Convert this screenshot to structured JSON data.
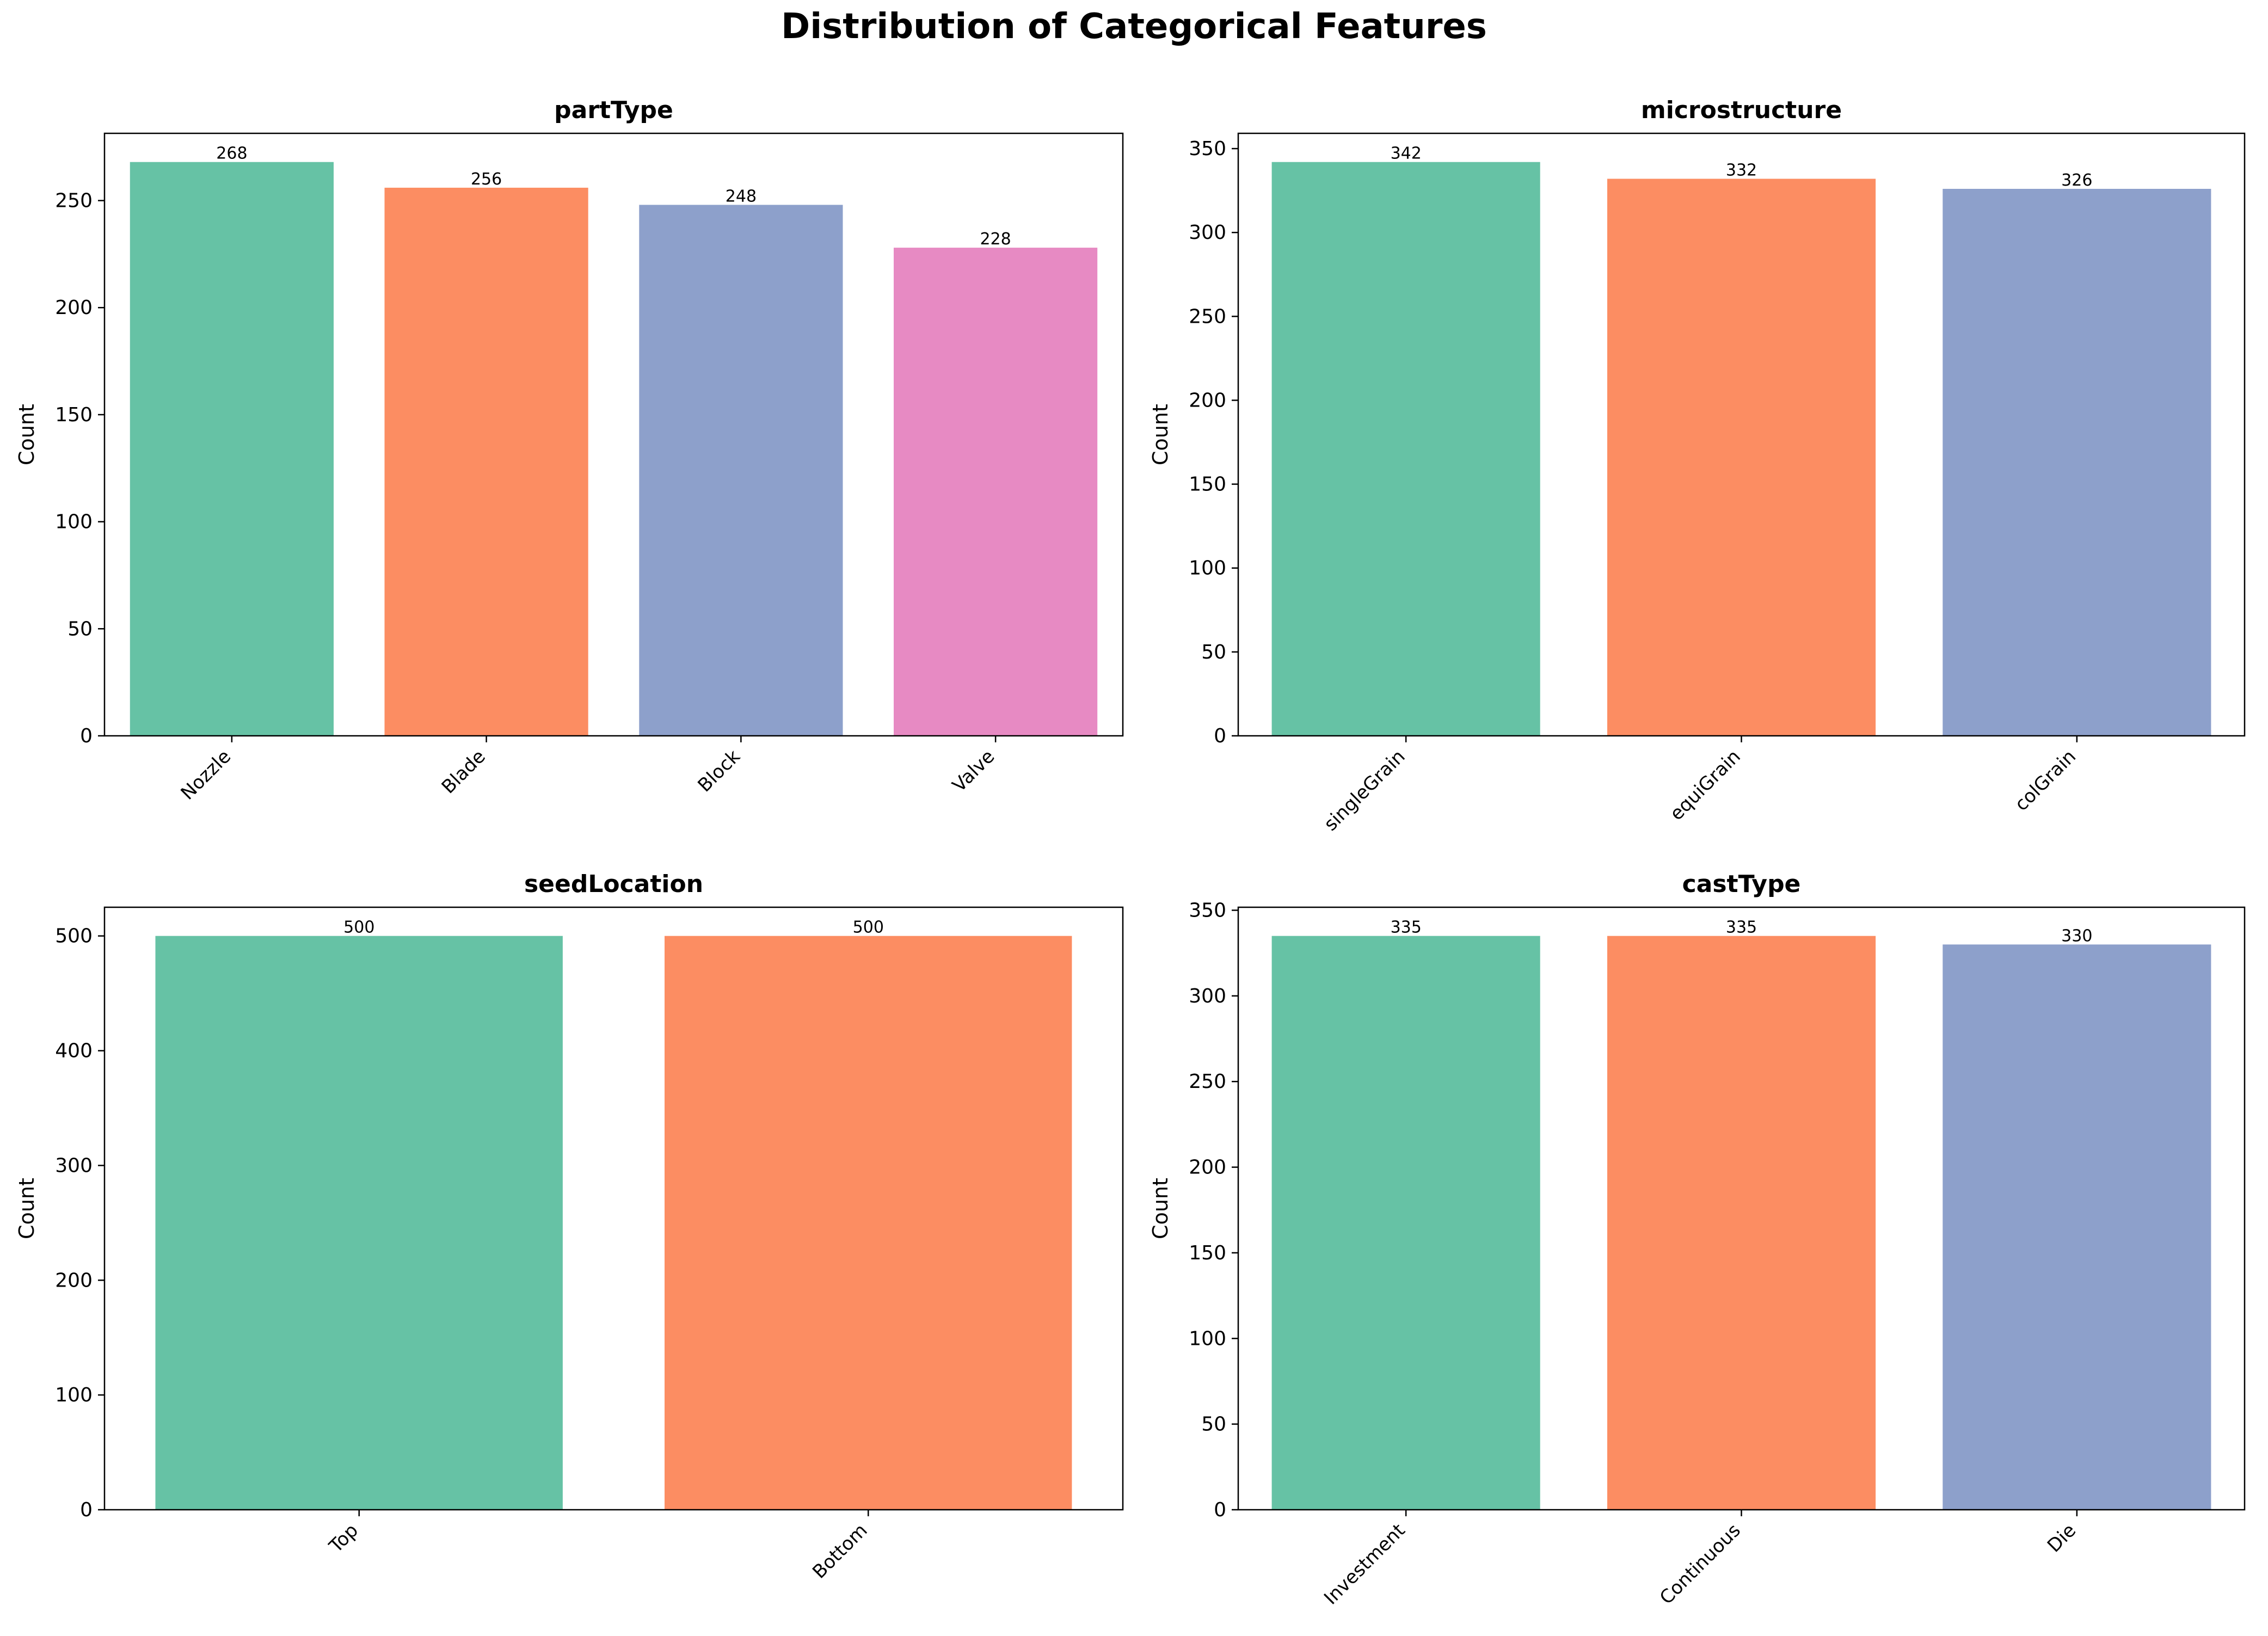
{
  "figure": {
    "title": "Distribution of Categorical Features"
  },
  "chart_data": [
    {
      "type": "bar",
      "title": "partType",
      "xlabel": "",
      "ylabel": "Count",
      "categories": [
        "Nozzle",
        "Blade",
        "Block",
        "Valve"
      ],
      "values": [
        268,
        256,
        248,
        228
      ],
      "ylim": [
        0,
        281.4
      ],
      "yticks": [
        0,
        50,
        100,
        150,
        200,
        250
      ],
      "colors": [
        "#66c2a5",
        "#fc8d62",
        "#8da0cb",
        "#e78ac3"
      ],
      "data_labels": [
        "268",
        "256",
        "248",
        "228"
      ],
      "xtick_rotation": 45,
      "grid": false
    },
    {
      "type": "bar",
      "title": "microstructure",
      "xlabel": "",
      "ylabel": "Count",
      "categories": [
        "singleGrain",
        "equiGrain",
        "colGrain"
      ],
      "values": [
        342,
        332,
        326
      ],
      "ylim": [
        0,
        359.1
      ],
      "yticks": [
        0,
        50,
        100,
        150,
        200,
        250,
        300,
        350
      ],
      "colors": [
        "#66c2a5",
        "#fc8d62",
        "#8da0cb"
      ],
      "data_labels": [
        "342",
        "332",
        "326"
      ],
      "xtick_rotation": 45,
      "grid": false
    },
    {
      "type": "bar",
      "title": "seedLocation",
      "xlabel": "",
      "ylabel": "Count",
      "categories": [
        "Top",
        "Bottom"
      ],
      "values": [
        500,
        500
      ],
      "ylim": [
        0,
        525
      ],
      "yticks": [
        0,
        100,
        200,
        300,
        400,
        500
      ],
      "colors": [
        "#66c2a5",
        "#fc8d62"
      ],
      "data_labels": [
        "500",
        "500"
      ],
      "xtick_rotation": 45,
      "grid": false
    },
    {
      "type": "bar",
      "title": "castType",
      "xlabel": "",
      "ylabel": "Count",
      "categories": [
        "Investment",
        "Continuous",
        "Die"
      ],
      "values": [
        335,
        335,
        330
      ],
      "ylim": [
        0,
        351.75
      ],
      "yticks": [
        0,
        50,
        100,
        150,
        200,
        250,
        300,
        350
      ],
      "colors": [
        "#66c2a5",
        "#fc8d62",
        "#8da0cb"
      ],
      "data_labels": [
        "335",
        "335",
        "330"
      ],
      "xtick_rotation": 45,
      "grid": false
    }
  ]
}
